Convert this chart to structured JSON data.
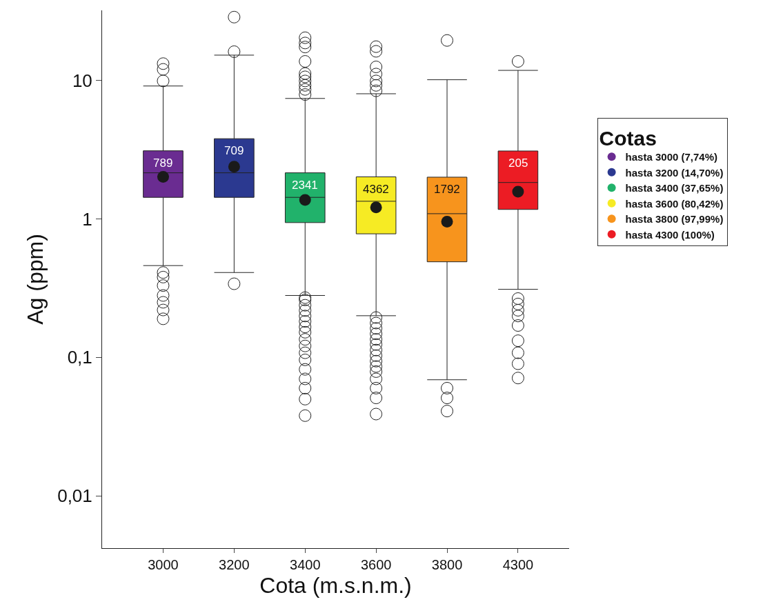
{
  "chart_data": {
    "type": "box",
    "xlabel": "Cota (m.s.n.m.)",
    "ylabel": "Ag (ppm)",
    "legend_title": "Cotas",
    "legend": "right",
    "log": "y",
    "grid": false,
    "marker": "circle",
    "categories": [
      "3000",
      "3200",
      "3400",
      "3600",
      "3800",
      "4300"
    ],
    "ylim": [
      0.0042,
      32
    ],
    "yticks": [
      {
        "value": 0.01,
        "label": "0,01"
      },
      {
        "value": 0.1,
        "label": "0,1"
      },
      1,
      10
    ],
    "series": [
      {
        "name": "hasta 3000 (7,74%)",
        "color": "#6a2c91",
        "boxes": [
          {
            "low": 0.46,
            "q1": 1.43,
            "median": 2.15,
            "q3": 3.1,
            "high": 9.1,
            "mean": 2.01,
            "outliers": [
              13.2,
              12.0,
              9.9,
              0.41,
              0.38,
              0.33,
              0.28,
              0.25,
              0.22,
              0.19
            ]
          },
          null,
          null,
          null,
          null,
          null
        ]
      },
      {
        "name": "hasta 3200 (14,70%)",
        "color": "#2b3990",
        "boxes": [
          null,
          {
            "low": 0.41,
            "q1": 1.43,
            "median": 2.15,
            "q3": 3.79,
            "high": 15.2,
            "mean": 2.38,
            "outliers": [
              28.6,
              16.1,
              0.34
            ]
          },
          null,
          null,
          null,
          null
        ]
      },
      {
        "name": "hasta 3400 (37,65%)",
        "color": "#21b26b",
        "boxes": [
          null,
          null,
          {
            "low": 0.28,
            "q1": 0.94,
            "median": 1.43,
            "q3": 2.15,
            "high": 7.4,
            "mean": 1.37,
            "outliers": [
              20.3,
              18.6,
              17.4,
              13.7,
              11.2,
              10.6,
              9.9,
              9.2,
              8.6,
              7.9,
              0.27,
              0.26,
              0.238,
              0.218,
              0.199,
              0.182,
              0.166,
              0.152,
              0.135,
              0.121,
              0.108,
              0.096,
              0.082,
              0.07,
              0.06,
              0.05,
              0.038
            ]
          },
          null,
          null,
          null
        ]
      },
      {
        "name": "hasta 3600 (80,42%)",
        "color": "#f6eb24",
        "boxes": [
          null,
          null,
          null,
          {
            "low": 0.2,
            "q1": 0.78,
            "median": 1.34,
            "q3": 2.01,
            "high": 8.0,
            "mean": 1.21,
            "outliers": [
              17.5,
              16.2,
              12.5,
              11.1,
              9.9,
              9.2,
              8.4,
              0.194,
              0.177,
              0.162,
              0.148,
              0.135,
              0.124,
              0.113,
              0.103,
              0.094,
              0.086,
              0.079,
              0.07,
              0.06,
              0.051,
              0.039
            ]
          },
          null,
          null
        ]
      },
      {
        "name": "hasta 3800 (97,99%)",
        "color": "#f7941d",
        "boxes": [
          null,
          null,
          null,
          null,
          {
            "low": 0.069,
            "q1": 0.49,
            "median": 1.09,
            "q3": 2.0,
            "high": 10.1,
            "mean": 0.955,
            "outliers": [
              19.4,
              0.06,
              0.051,
              0.041
            ]
          },
          null
        ]
      },
      {
        "name": "hasta 4300 (100%)",
        "color": "#ec1c24",
        "boxes": [
          null,
          null,
          null,
          null,
          null,
          {
            "low": 0.31,
            "q1": 1.17,
            "median": 1.83,
            "q3": 3.09,
            "high": 11.8,
            "mean": 1.57,
            "outliers": [
              13.7,
              0.266,
              0.243,
              0.219,
              0.199,
              0.17,
              0.132,
              0.108,
              0.09,
              0.071
            ]
          }
        ]
      }
    ],
    "annotations": [
      "789",
      "709",
      "2341",
      "4362",
      "1792",
      "205"
    ]
  }
}
